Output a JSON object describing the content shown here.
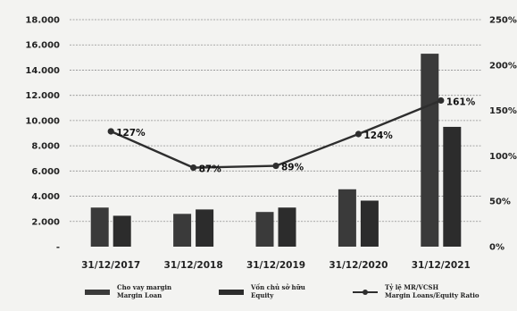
{
  "chart_data": {
    "type": "bar",
    "categories": [
      "31/12/2017",
      "31/12/2018",
      "31/12/2019",
      "31/12/2020",
      "31/12/2021"
    ],
    "series": [
      {
        "name": "Cho vay margin\nMargin Loan",
        "kind": "bar",
        "axis": "left",
        "color": "#3a3a3a",
        "values": [
          3100,
          2600,
          2750,
          4550,
          15300
        ]
      },
      {
        "name": "Vốn chủ sở hữu\nEquity",
        "kind": "bar",
        "axis": "left",
        "color": "#2c2c2c",
        "values": [
          2450,
          2950,
          3100,
          3650,
          9500
        ]
      },
      {
        "name": "Tỷ lệ MR/VCSH\nMargin Loans/Equity Ratio",
        "kind": "line",
        "axis": "right",
        "color": "#2e2e2e",
        "values": [
          127,
          87,
          89,
          124,
          161
        ],
        "labels": [
          "127%",
          "87%",
          "89%",
          "124%",
          "161%"
        ]
      }
    ],
    "y_left": {
      "min": 0,
      "max": 18000,
      "ticks": [
        "-",
        "2.000",
        "4.000",
        "6.000",
        "8.000",
        "10.000",
        "12.000",
        "14.000",
        "16.000",
        "18.000"
      ]
    },
    "y_right": {
      "min": 0,
      "max": 250,
      "ticks": [
        "0%",
        "50%",
        "100%",
        "150%",
        "200%",
        "250%"
      ]
    },
    "grid": true,
    "legend_position": "bottom"
  }
}
